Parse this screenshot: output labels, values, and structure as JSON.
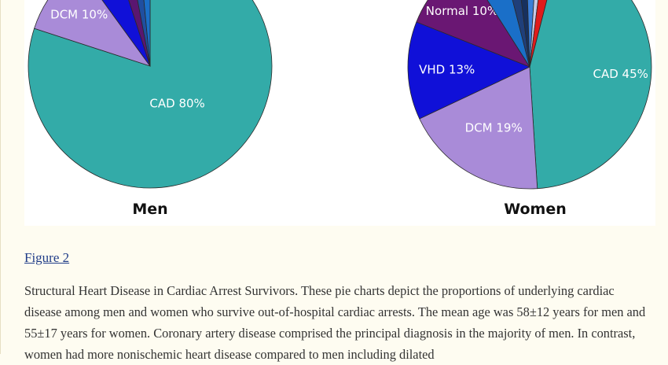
{
  "figure": {
    "link_label": "Figure 2",
    "caption": "Structural Heart Disease in Cardiac Arrest Survivors. These pie charts depict the proportions of underlying cardiac disease among men and women who survive out-of-hospital cardiac arrests. The mean age was 58±12 years for men and 55±17 years for women. Coronary artery disease comprised the principal diagnosis in the majority of men. In contrast, women had more nonischemic heart disease compared to men including dilated"
  },
  "chart_data": [
    {
      "type": "pie",
      "title": "Men",
      "slices": [
        {
          "label": "CAD 80%",
          "value": 80,
          "color": "#33aba8"
        },
        {
          "label": "DCM 10%",
          "value": 10,
          "color": "#a98bd8"
        },
        {
          "label": "",
          "value": 5,
          "color": "#1010d8"
        },
        {
          "label": "",
          "value": 2,
          "color": "#5a1670"
        },
        {
          "label": "",
          "value": 1.5,
          "color": "#1f4fa0"
        },
        {
          "label": "",
          "value": 1.5,
          "color": "#1a6fc8"
        }
      ]
    },
    {
      "type": "pie",
      "title": "Women",
      "slices": [
        {
          "label": "CAD 45%",
          "value": 45,
          "color": "#33aba8"
        },
        {
          "label": "DCM 19%",
          "value": 19,
          "color": "#a98bd8"
        },
        {
          "label": "VHD 13%",
          "value": 13,
          "color": "#1010d8"
        },
        {
          "label": "Normal 10%",
          "value": 10,
          "color": "#6a1773"
        },
        {
          "label": "",
          "value": 5,
          "color": "#1a6fc8"
        },
        {
          "label": "",
          "value": 2,
          "color": "#1f3f7a"
        },
        {
          "label": "",
          "value": 1.5,
          "color": "#17305e"
        },
        {
          "label": "",
          "value": 1.5,
          "color": "#3b7fd9"
        },
        {
          "label": "",
          "value": 1,
          "color": "#c7c9e6"
        },
        {
          "label": "",
          "value": 2,
          "color": "#e01b1b"
        }
      ]
    }
  ]
}
